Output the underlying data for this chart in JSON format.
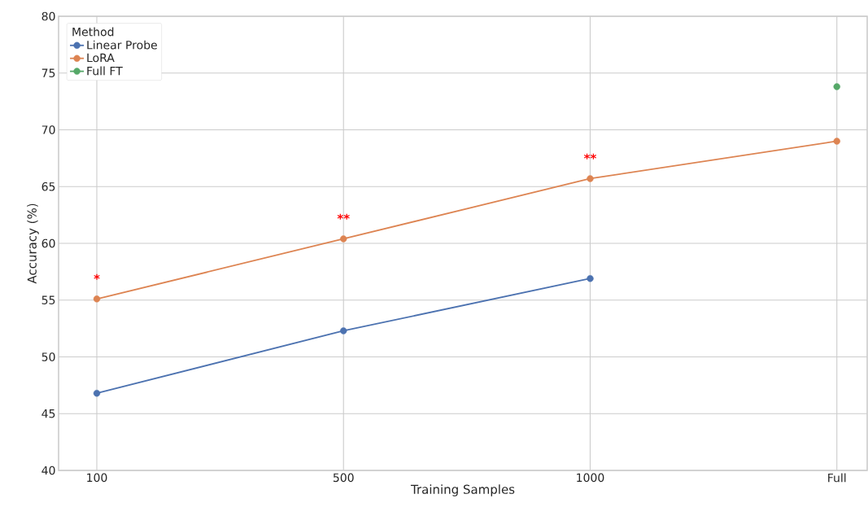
{
  "chart_data": {
    "type": "line",
    "xlabel": "Training Samples",
    "ylabel": "Accuracy (%)",
    "legend_title": "Method",
    "categories": [
      "100",
      "500",
      "1000",
      "Full"
    ],
    "series": [
      {
        "name": "Linear Probe",
        "color": "#4c72b0",
        "values": [
          46.8,
          52.3,
          56.9,
          null
        ]
      },
      {
        "name": "LoRA",
        "color": "#dd8452",
        "values": [
          55.1,
          60.4,
          65.7,
          69.0
        ]
      },
      {
        "name": "Full FT",
        "color": "#55a868",
        "values": [
          null,
          null,
          null,
          73.8
        ]
      }
    ],
    "ylim": [
      40,
      80
    ],
    "yticks": [
      40,
      45,
      50,
      55,
      60,
      65,
      70,
      75,
      80
    ],
    "annotations": [
      {
        "text": "*",
        "x": "100",
        "y": 55.1
      },
      {
        "text": "**",
        "x": "500",
        "y": 60.4
      },
      {
        "text": "**",
        "x": "1000",
        "y": 65.7
      }
    ],
    "grid": true,
    "legend": "top left",
    "marker": "circle",
    "line_style": "solid"
  }
}
